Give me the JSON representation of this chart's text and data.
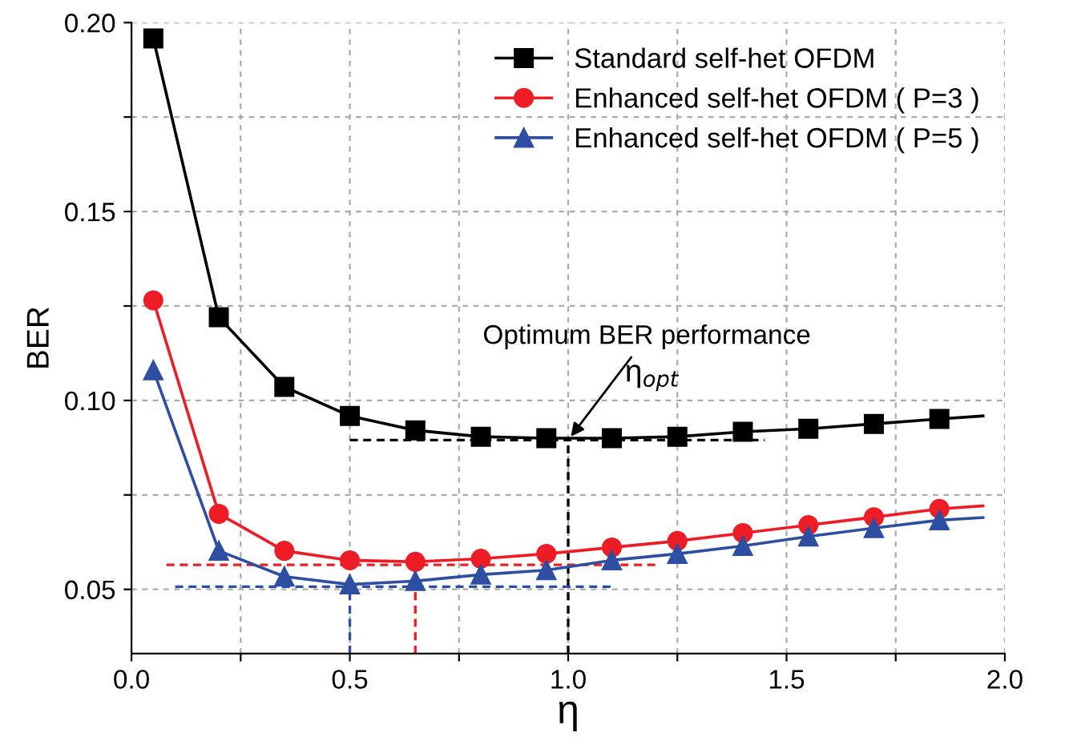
{
  "chart_data": {
    "type": "line",
    "xlabel": "η",
    "ylabel": "BER",
    "x": [
      0.05,
      0.2,
      0.35,
      0.5,
      0.65,
      0.8,
      0.95,
      1.1,
      1.25,
      1.4,
      1.55,
      1.7,
      1.85,
      1.95
    ],
    "series": [
      {
        "name": "Standard self-het OFDM",
        "color": "#000000",
        "marker": "square",
        "values": [
          0.1958,
          0.122,
          0.1036,
          0.0959,
          0.0921,
          0.0904,
          0.09,
          0.09,
          0.0904,
          0.0917,
          0.0925,
          0.0938,
          0.0951,
          0.0959
        ]
      },
      {
        "name": "Enhanced self-het OFDM ( P=3 )",
        "color": "#ee1c25",
        "marker": "circle",
        "values": [
          0.1265,
          0.07,
          0.0602,
          0.0577,
          0.0573,
          0.0581,
          0.0594,
          0.0611,
          0.0628,
          0.0649,
          0.067,
          0.0691,
          0.0713,
          0.0721
        ]
      },
      {
        "name": "Enhanced self-het OFDM ( P=5 )",
        "color": "#2e4ea2",
        "marker": "triangle",
        "values": [
          0.108,
          0.0602,
          0.0534,
          0.0513,
          0.0522,
          0.0539,
          0.0551,
          0.0577,
          0.0594,
          0.0615,
          0.064,
          0.0662,
          0.0683,
          0.069
        ]
      },
      {
        "type": "line",
        "color": "#000000",
        "line_style": "dashed",
        "marker": "none",
        "x": [
          0.5,
          1.45
        ],
        "values": [
          0.0895,
          0.0895
        ]
      },
      {
        "type": "line",
        "color": "#000000",
        "line_style": "dashed",
        "marker": "none",
        "x": [
          1.0,
          1.0
        ],
        "values": [
          0.033,
          0.0895
        ]
      },
      {
        "type": "line",
        "color": "#ee1c25",
        "line_style": "dashed",
        "marker": "none",
        "x": [
          0.08,
          1.2
        ],
        "values": [
          0.0565,
          0.0565
        ]
      },
      {
        "type": "line",
        "color": "#ee1c25",
        "line_style": "dashed",
        "marker": "none",
        "x": [
          0.65,
          0.65
        ],
        "values": [
          0.033,
          0.0565
        ]
      },
      {
        "type": "line",
        "color": "#2e4ea2",
        "line_style": "dashed",
        "marker": "none",
        "x": [
          0.1,
          1.1
        ],
        "values": [
          0.0507,
          0.0507
        ]
      },
      {
        "type": "line",
        "color": "#2e4ea2",
        "line_style": "dashed",
        "marker": "none",
        "x": [
          0.5,
          0.5
        ],
        "values": [
          0.033,
          0.0507
        ]
      }
    ],
    "xlim": [
      0,
      2
    ],
    "ylim": [
      0.033,
      0.2
    ],
    "xticks": [
      {
        "value": 0,
        "label": "0.0"
      },
      {
        "value": 0.25,
        "label": null
      },
      {
        "value": 0.5,
        "label": "0.5"
      },
      {
        "value": 0.75,
        "label": null
      },
      {
        "value": 1,
        "label": "1.0"
      },
      {
        "value": 1.25,
        "label": null
      },
      {
        "value": 1.5,
        "label": "1.5"
      },
      {
        "value": 1.75,
        "label": null
      },
      {
        "value": 2,
        "label": "2.0"
      }
    ],
    "yticks": [
      {
        "value": 0.05,
        "label": "0.05"
      },
      {
        "value": 0.075,
        "label": null
      },
      {
        "value": 0.1,
        "label": "0.10"
      },
      {
        "value": 0.125,
        "label": null
      },
      {
        "value": 0.15,
        "label": "0.15"
      },
      {
        "value": 0.175,
        "label": null
      },
      {
        "value": 0.2,
        "label": "0.20"
      }
    ],
    "grid": true,
    "legend": "top right",
    "line_style": "solid",
    "annotations": [
      {
        "text": "Optimum BER performance",
        "x": 1.0,
        "y": 0.0895
      },
      "η$_{opt}$"
    ]
  }
}
